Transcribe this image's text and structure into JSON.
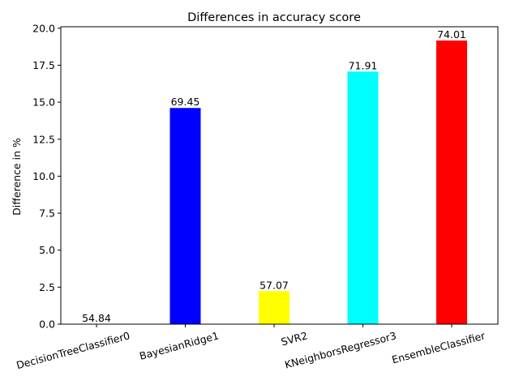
{
  "chart_data": {
    "type": "bar",
    "title": "Differences in accuracy score",
    "xlabel": "",
    "ylabel": "Difference in %",
    "categories": [
      "DecisionTreeClassifier0",
      "BayesianRidge1",
      "SVR2",
      "KNeighborsRegressor3",
      "EnsembleClassifier"
    ],
    "values": [
      0.0,
      14.61,
      2.23,
      17.07,
      19.17
    ],
    "data_labels": [
      "54.84",
      "69.45",
      "57.07",
      "71.91",
      "74.01"
    ],
    "colors": [
      "#ffffff",
      "#0000ff",
      "#ffff00",
      "#00ffff",
      "#ff0000"
    ],
    "ylim": [
      0,
      20.1
    ],
    "yticks": [
      "0.0",
      "2.5",
      "5.0",
      "7.5",
      "10.0",
      "12.5",
      "15.0",
      "17.5",
      "20.0"
    ],
    "grid": false,
    "legend": "none"
  }
}
